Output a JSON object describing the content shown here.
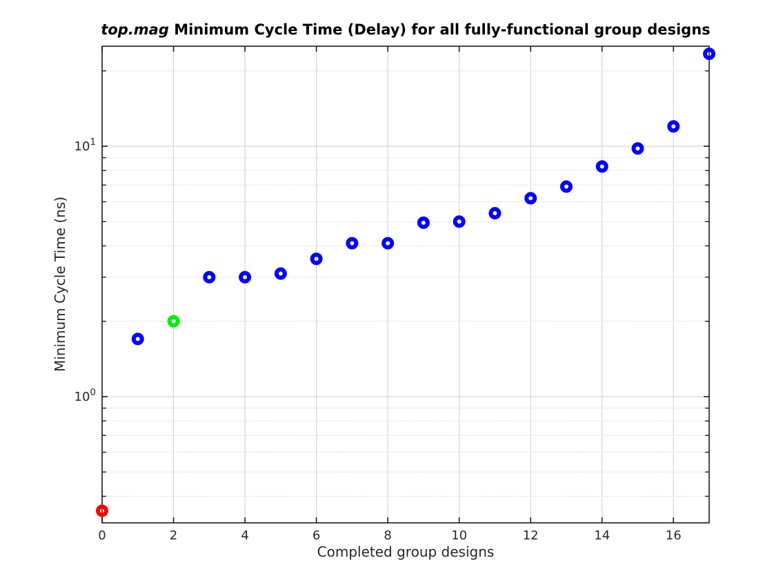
{
  "title": {
    "italic_part": "top.mag",
    "regular_part": " Minimum Cycle Time (Delay) for all fully-functional group designs"
  },
  "chart_data": {
    "type": "scatter",
    "title": "top.mag Minimum Cycle Time (Delay) for all fully-functional group designs",
    "xlabel": "Completed group designs",
    "ylabel": "Minimum Cycle Time (ns)",
    "xscale": "linear",
    "yscale": "log",
    "xlim": [
      0,
      17
    ],
    "ylim": [
      0.3133,
      25.09
    ],
    "xticks": [
      0,
      2,
      4,
      6,
      8,
      10,
      12,
      14,
      16
    ],
    "yticks": [
      {
        "value": 1,
        "base": "10",
        "exponent": "0"
      },
      {
        "value": 10,
        "base": "10",
        "exponent": "1"
      }
    ],
    "grid": {
      "vertical_major": true,
      "horizontal_major": true,
      "horizontal_minor_dotted": true,
      "box": true,
      "tick_dir": "in"
    },
    "legend": "none",
    "points": [
      {
        "x": 0,
        "y": 0.35,
        "color": "#ff0000"
      },
      {
        "x": 1,
        "y": 1.7,
        "color": "#0000ff"
      },
      {
        "x": 2,
        "y": 2.0,
        "color": "#00ee00"
      },
      {
        "x": 3,
        "y": 3.0,
        "color": "#0000ff"
      },
      {
        "x": 4,
        "y": 3.0,
        "color": "#0000ff"
      },
      {
        "x": 5,
        "y": 3.1,
        "color": "#0000ff"
      },
      {
        "x": 6,
        "y": 3.55,
        "color": "#0000ff"
      },
      {
        "x": 7,
        "y": 4.1,
        "color": "#0000ff"
      },
      {
        "x": 8,
        "y": 4.1,
        "color": "#0000ff"
      },
      {
        "x": 9,
        "y": 4.95,
        "color": "#0000ff"
      },
      {
        "x": 10,
        "y": 5.0,
        "color": "#0000ff"
      },
      {
        "x": 11,
        "y": 5.4,
        "color": "#0000ff"
      },
      {
        "x": 12,
        "y": 6.2,
        "color": "#0000ff"
      },
      {
        "x": 13,
        "y": 6.9,
        "color": "#0000ff"
      },
      {
        "x": 14,
        "y": 8.3,
        "color": "#0000ff"
      },
      {
        "x": 15,
        "y": 9.8,
        "color": "#0000ff"
      },
      {
        "x": 16,
        "y": 12.0,
        "color": "#0000ff"
      },
      {
        "x": 17,
        "y": 23.4,
        "color": "#0000ff"
      }
    ],
    "marker": {
      "shape": "circle-open",
      "radius": 6,
      "stroke_width": 6
    },
    "colors": {
      "axis": "#1a1a1a",
      "tick_text": "#262626",
      "title_text": "#000000",
      "major_grid": "#d6d6d6",
      "minor_grid": "#c8c8c8"
    }
  }
}
